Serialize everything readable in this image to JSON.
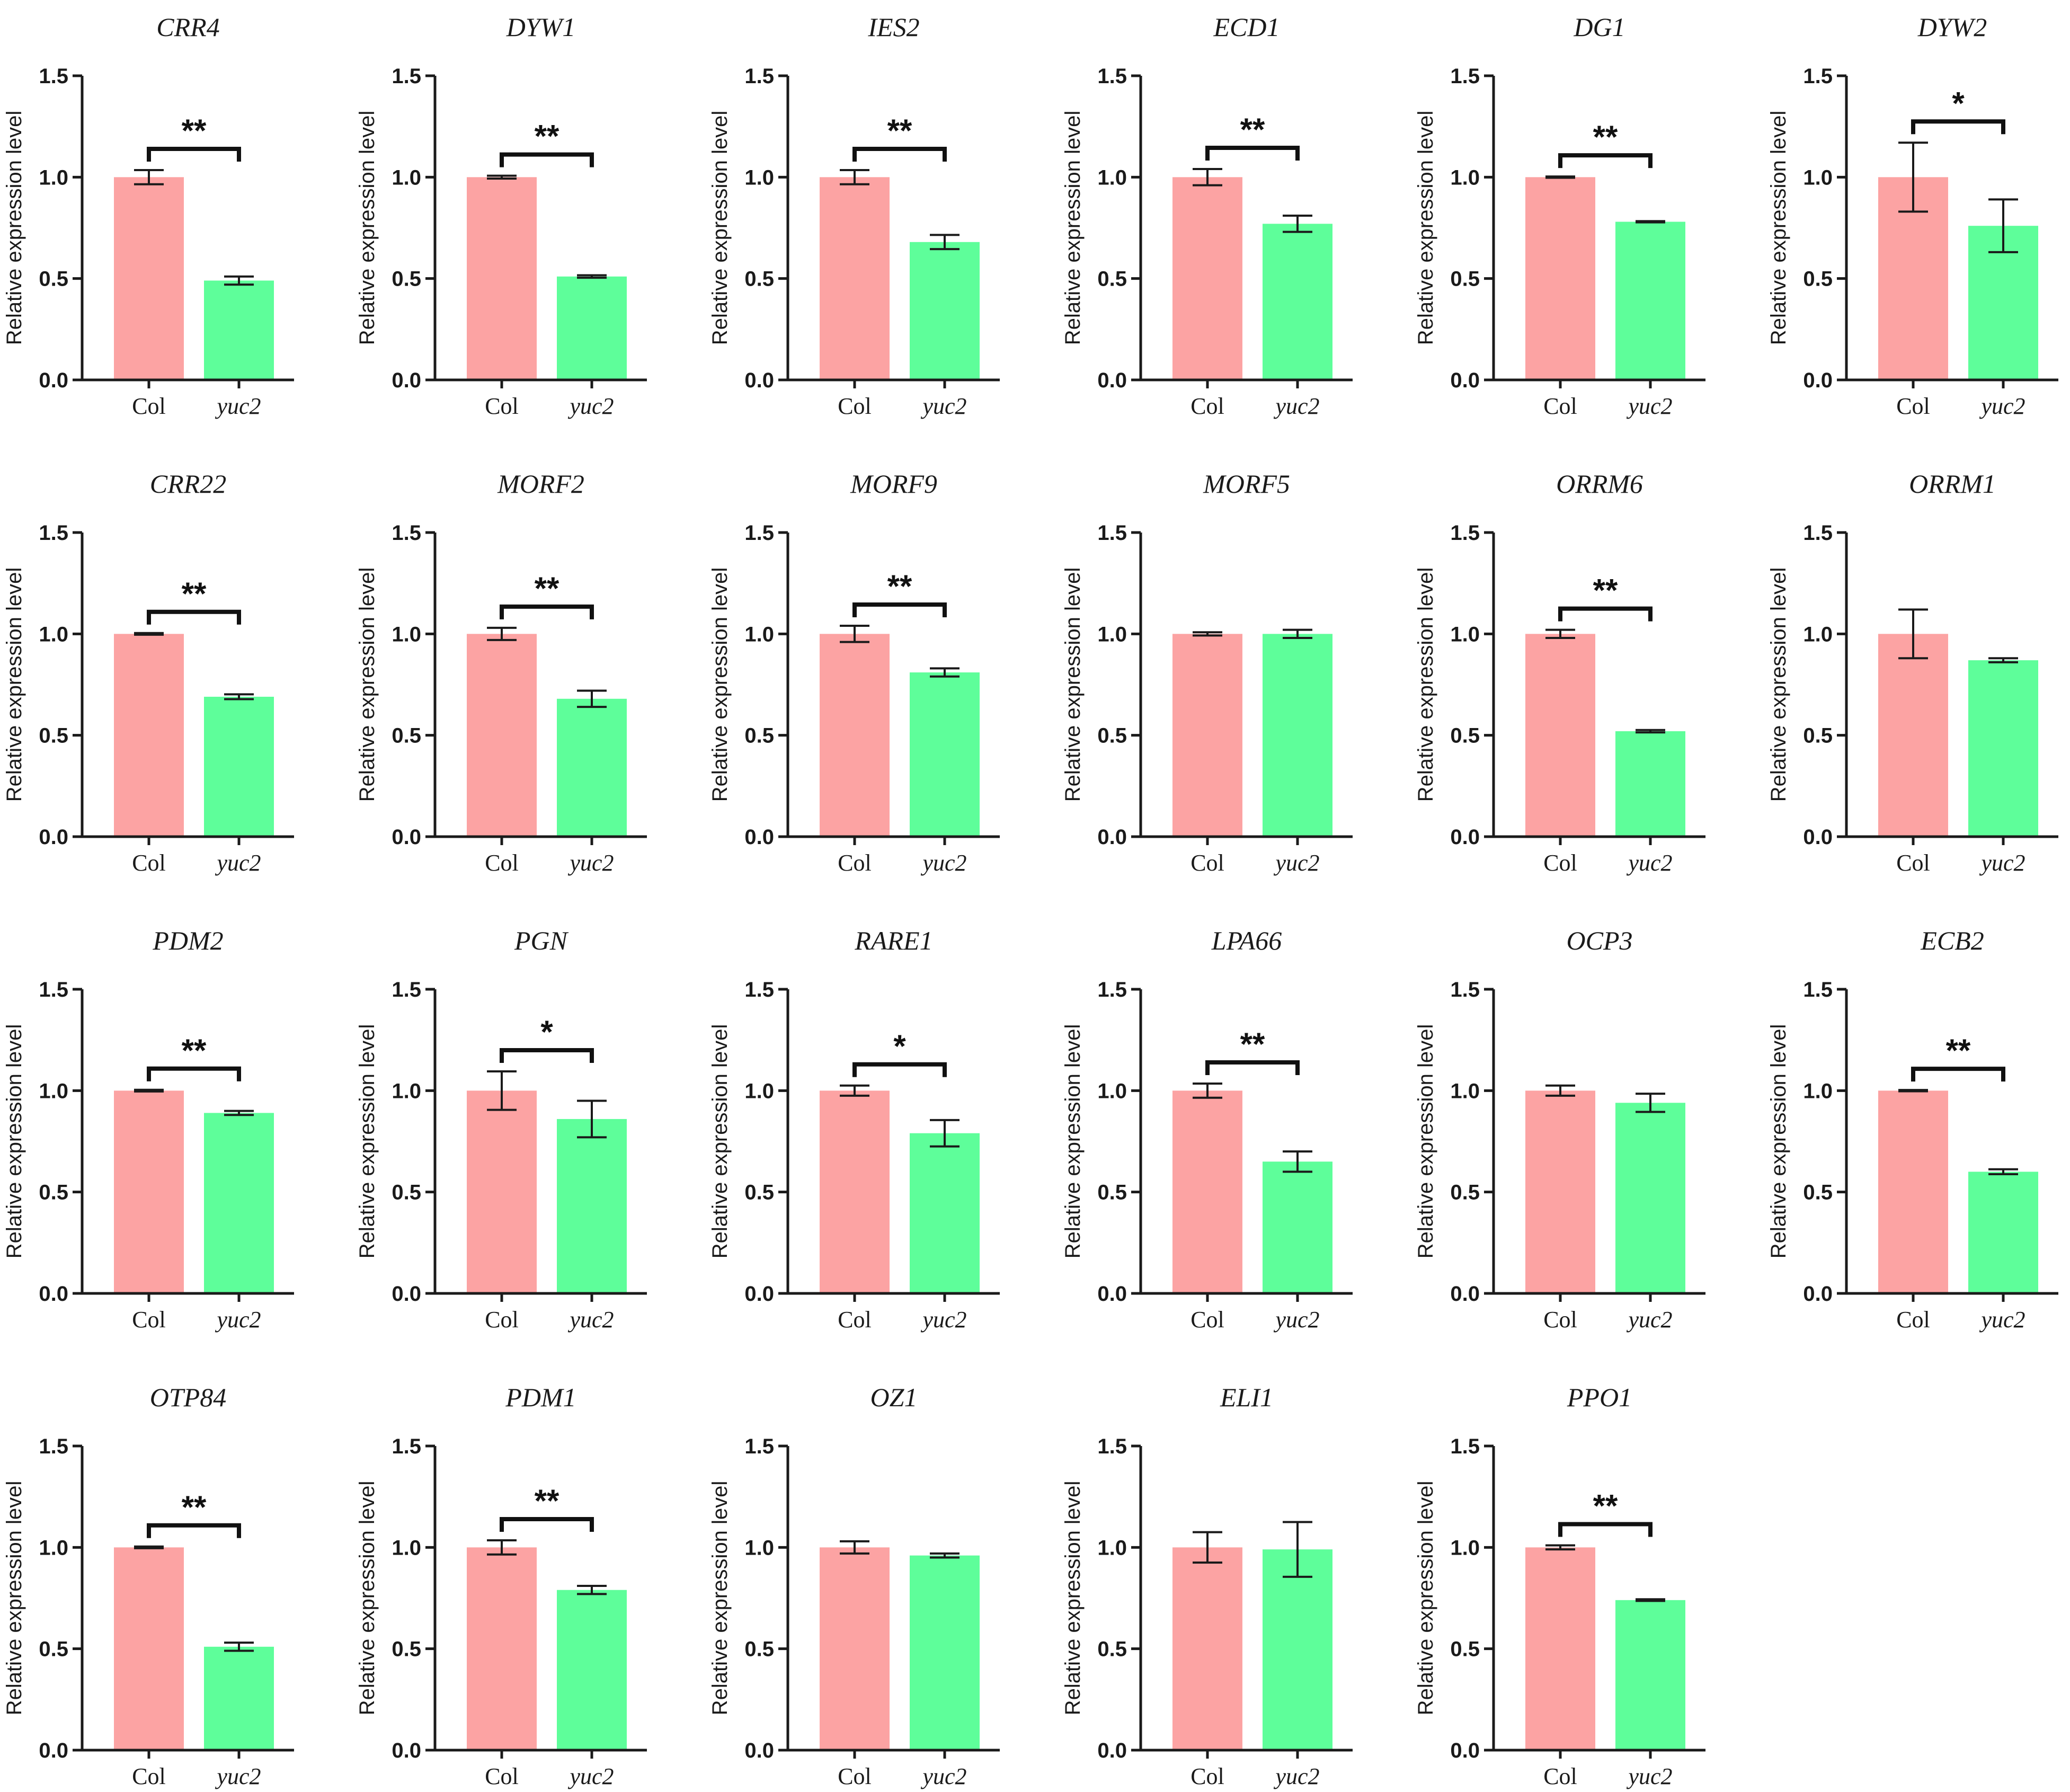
{
  "figure": {
    "ylabel": "Relative expression level",
    "yticks": [
      "0.0",
      "0.5",
      "1.0",
      "1.5"
    ],
    "colors": {
      "col": "#fca3a3",
      "yuc2": "#5efe9a",
      "ink": "#1a1a1a"
    }
  },
  "chart_data": [
    {
      "type": "bar",
      "title": "CRR4",
      "categories": [
        "Col",
        "yuc2"
      ],
      "values": [
        1.0,
        0.49
      ],
      "errors": [
        0.035,
        0.02
      ],
      "significance": "**",
      "ylabel": "Relative expression level",
      "ylim": [
        0,
        1.5
      ]
    },
    {
      "type": "bar",
      "title": "DYW1",
      "categories": [
        "Col",
        "yuc2"
      ],
      "values": [
        1.0,
        0.51
      ],
      "errors": [
        0.007,
        0.006
      ],
      "significance": "**",
      "ylabel": "Relative expression level",
      "ylim": [
        0,
        1.5
      ]
    },
    {
      "type": "bar",
      "title": "IES2",
      "categories": [
        "Col",
        "yuc2"
      ],
      "values": [
        1.0,
        0.68
      ],
      "errors": [
        0.035,
        0.035
      ],
      "significance": "**",
      "ylabel": "Relative expression level",
      "ylim": [
        0,
        1.5
      ]
    },
    {
      "type": "bar",
      "title": "ECD1",
      "categories": [
        "Col",
        "yuc2"
      ],
      "values": [
        1.0,
        0.77
      ],
      "errors": [
        0.04,
        0.04
      ],
      "significance": "**",
      "ylabel": "Relative expression level",
      "ylim": [
        0,
        1.5
      ]
    },
    {
      "type": "bar",
      "title": "DG1",
      "categories": [
        "Col",
        "yuc2"
      ],
      "values": [
        1.0,
        0.78
      ],
      "errors": [
        0.003,
        0.003
      ],
      "significance": "**",
      "ylabel": "Relative expression level",
      "ylim": [
        0,
        1.5
      ]
    },
    {
      "type": "bar",
      "title": "DYW2",
      "categories": [
        "Col",
        "yuc2"
      ],
      "values": [
        1.0,
        0.76
      ],
      "errors": [
        0.17,
        0.13
      ],
      "significance": "*",
      "ylabel": "Relative expression level",
      "ylim": [
        0,
        1.5
      ]
    },
    {
      "type": "bar",
      "title": "CRR22",
      "categories": [
        "Col",
        "yuc2"
      ],
      "values": [
        1.0,
        0.69
      ],
      "errors": [
        0.004,
        0.012
      ],
      "significance": "**",
      "ylabel": "Relative expression level",
      "ylim": [
        0,
        1.5
      ]
    },
    {
      "type": "bar",
      "title": "MORF2",
      "categories": [
        "Col",
        "yuc2"
      ],
      "values": [
        1.0,
        0.68
      ],
      "errors": [
        0.03,
        0.04
      ],
      "significance": "**",
      "ylabel": "Relative expression level",
      "ylim": [
        0,
        1.5
      ]
    },
    {
      "type": "bar",
      "title": "MORF9",
      "categories": [
        "Col",
        "yuc2"
      ],
      "values": [
        1.0,
        0.81
      ],
      "errors": [
        0.04,
        0.02
      ],
      "significance": "**",
      "ylabel": "Relative expression level",
      "ylim": [
        0,
        1.5
      ]
    },
    {
      "type": "bar",
      "title": "MORF5",
      "categories": [
        "Col",
        "yuc2"
      ],
      "values": [
        1.0,
        1.0
      ],
      "errors": [
        0.008,
        0.02
      ],
      "significance": "",
      "ylabel": "Relative expression level",
      "ylim": [
        0,
        1.5
      ]
    },
    {
      "type": "bar",
      "title": "ORRM6",
      "categories": [
        "Col",
        "yuc2"
      ],
      "values": [
        1.0,
        0.52
      ],
      "errors": [
        0.02,
        0.006
      ],
      "significance": "**",
      "ylabel": "Relative expression level",
      "ylim": [
        0,
        1.5
      ]
    },
    {
      "type": "bar",
      "title": "ORRM1",
      "categories": [
        "Col",
        "yuc2"
      ],
      "values": [
        1.0,
        0.87
      ],
      "errors": [
        0.12,
        0.01
      ],
      "significance": "",
      "ylabel": "Relative expression level",
      "ylim": [
        0,
        1.5
      ]
    },
    {
      "type": "bar",
      "title": "PDM2",
      "categories": [
        "Col",
        "yuc2"
      ],
      "values": [
        1.0,
        0.89
      ],
      "errors": [
        0.004,
        0.01
      ],
      "significance": "**",
      "ylabel": "Relative expression level",
      "ylim": [
        0,
        1.5
      ]
    },
    {
      "type": "bar",
      "title": "PGN",
      "categories": [
        "Col",
        "yuc2"
      ],
      "values": [
        1.0,
        0.86
      ],
      "errors": [
        0.095,
        0.09
      ],
      "significance": "*",
      "ylabel": "Relative expression level",
      "ylim": [
        0,
        1.5
      ]
    },
    {
      "type": "bar",
      "title": "RARE1",
      "categories": [
        "Col",
        "yuc2"
      ],
      "values": [
        1.0,
        0.79
      ],
      "errors": [
        0.025,
        0.065
      ],
      "significance": "*",
      "ylabel": "Relative expression level",
      "ylim": [
        0,
        1.5
      ]
    },
    {
      "type": "bar",
      "title": "LPA66",
      "categories": [
        "Col",
        "yuc2"
      ],
      "values": [
        1.0,
        0.65
      ],
      "errors": [
        0.035,
        0.05
      ],
      "significance": "**",
      "ylabel": "Relative expression level",
      "ylim": [
        0,
        1.5
      ]
    },
    {
      "type": "bar",
      "title": "OCP3",
      "categories": [
        "Col",
        "yuc2"
      ],
      "values": [
        1.0,
        0.94
      ],
      "errors": [
        0.025,
        0.045
      ],
      "significance": "",
      "ylabel": "Relative expression level",
      "ylim": [
        0,
        1.5
      ]
    },
    {
      "type": "bar",
      "title": "ECB2",
      "categories": [
        "Col",
        "yuc2"
      ],
      "values": [
        1.0,
        0.6
      ],
      "errors": [
        0.003,
        0.012
      ],
      "significance": "**",
      "ylabel": "Relative expression level",
      "ylim": [
        0,
        1.5
      ]
    },
    {
      "type": "bar",
      "title": "OTP84",
      "categories": [
        "Col",
        "yuc2"
      ],
      "values": [
        1.0,
        0.51
      ],
      "errors": [
        0.004,
        0.02
      ],
      "significance": "**",
      "ylabel": "Relative expression level",
      "ylim": [
        0,
        1.5
      ]
    },
    {
      "type": "bar",
      "title": "PDM1",
      "categories": [
        "Col",
        "yuc2"
      ],
      "values": [
        1.0,
        0.79
      ],
      "errors": [
        0.035,
        0.02
      ],
      "significance": "**",
      "ylabel": "Relative expression level",
      "ylim": [
        0,
        1.5
      ]
    },
    {
      "type": "bar",
      "title": "OZ1",
      "categories": [
        "Col",
        "yuc2"
      ],
      "values": [
        1.0,
        0.96
      ],
      "errors": [
        0.03,
        0.01
      ],
      "significance": "",
      "ylabel": "Relative expression level",
      "ylim": [
        0,
        1.5
      ]
    },
    {
      "type": "bar",
      "title": "ELI1",
      "categories": [
        "Col",
        "yuc2"
      ],
      "values": [
        1.0,
        0.99
      ],
      "errors": [
        0.075,
        0.135
      ],
      "significance": "",
      "ylabel": "Relative expression level",
      "ylim": [
        0,
        1.5
      ]
    },
    {
      "type": "bar",
      "title": "PPO1",
      "categories": [
        "Col",
        "yuc2"
      ],
      "values": [
        1.0,
        0.74
      ],
      "errors": [
        0.01,
        0.004
      ],
      "significance": "**",
      "ylabel": "Relative expression level",
      "ylim": [
        0,
        1.5
      ]
    }
  ]
}
